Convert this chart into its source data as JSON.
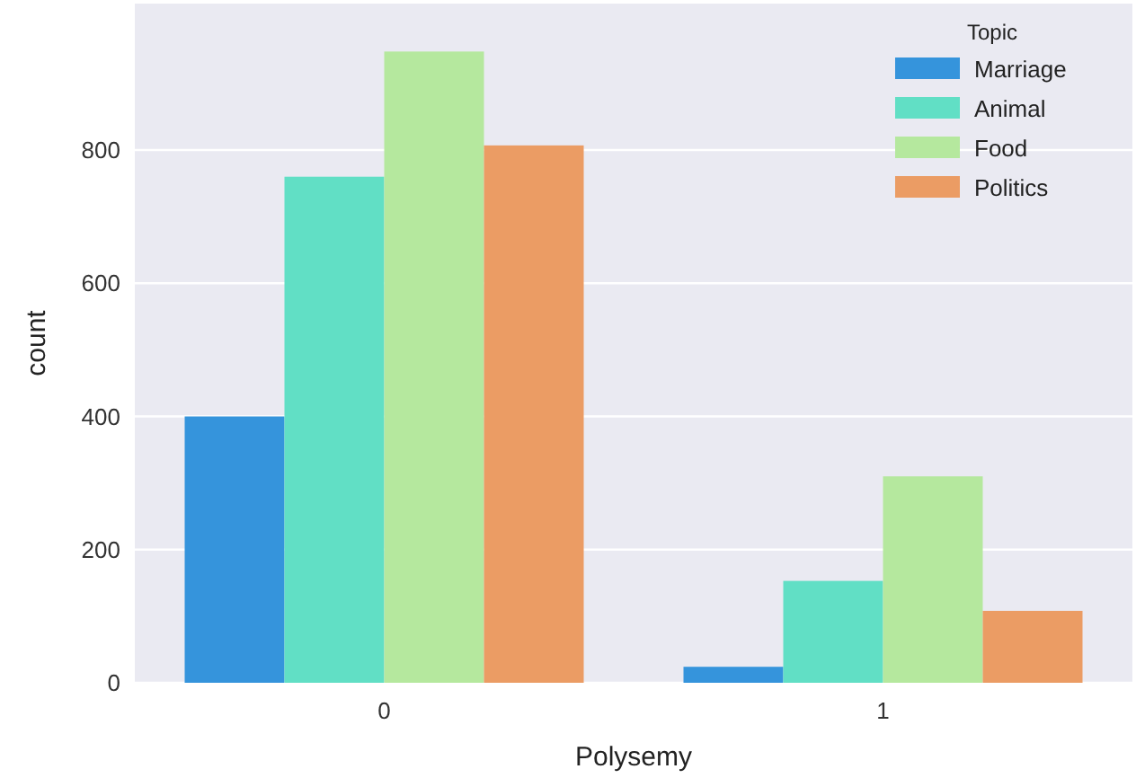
{
  "chart_data": {
    "type": "bar",
    "xlabel": "Polysemy",
    "ylabel": "count",
    "legend_title": "Topic",
    "categories": [
      "0",
      "1"
    ],
    "series": [
      {
        "name": "Marriage",
        "color": "#3594dc",
        "values": [
          400,
          24
        ]
      },
      {
        "name": "Animal",
        "color": "#61dfc5",
        "values": [
          760,
          153
        ]
      },
      {
        "name": "Food",
        "color": "#b5e89e",
        "values": [
          948,
          310
        ]
      },
      {
        "name": "Politics",
        "color": "#eb9c64",
        "values": [
          807,
          108
        ]
      }
    ],
    "ylim": [
      0,
      1020
    ],
    "yticks": [
      0,
      200,
      400,
      600,
      800
    ],
    "grid": "y",
    "legend": "top right"
  }
}
